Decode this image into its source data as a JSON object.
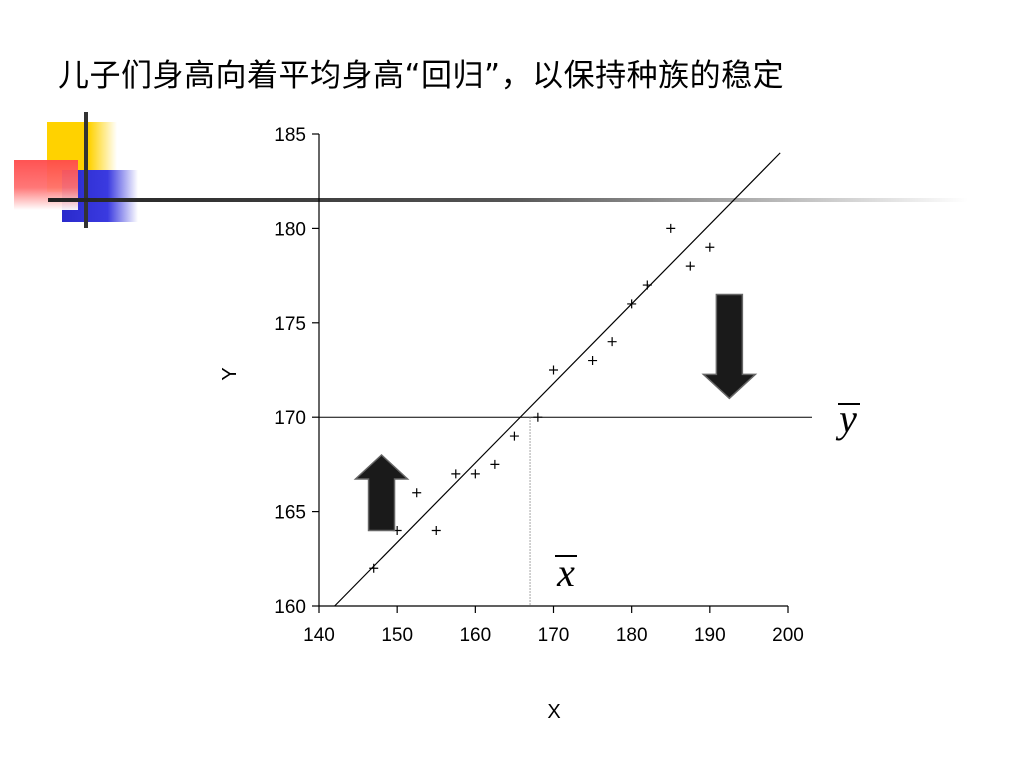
{
  "title": "儿子们身高向着平均身高“回归”，以保持种族的稳定",
  "chart_data": {
    "type": "scatter",
    "title": "儿子们身高向着平均身高“回归”，以保持种族的稳定",
    "xlabel": "X",
    "ylabel": "Y",
    "xlim": [
      140,
      200
    ],
    "ylim": [
      160,
      185
    ],
    "x_ticks": [
      "140",
      "150",
      "160",
      "170",
      "180",
      "190",
      "200"
    ],
    "y_ticks": [
      "160",
      "165",
      "170",
      "175",
      "180",
      "185"
    ],
    "x_tick_values": [
      140,
      150,
      160,
      170,
      180,
      190,
      200
    ],
    "y_tick_values": [
      160,
      165,
      170,
      175,
      180,
      185
    ],
    "points": [
      {
        "x": 147,
        "y": 162
      },
      {
        "x": 150,
        "y": 164
      },
      {
        "x": 152.5,
        "y": 166
      },
      {
        "x": 155,
        "y": 164
      },
      {
        "x": 157.5,
        "y": 167
      },
      {
        "x": 160,
        "y": 167
      },
      {
        "x": 162.5,
        "y": 167.5
      },
      {
        "x": 165,
        "y": 169
      },
      {
        "x": 168,
        "y": 170
      },
      {
        "x": 170,
        "y": 172.5
      },
      {
        "x": 175,
        "y": 173
      },
      {
        "x": 177.5,
        "y": 174
      },
      {
        "x": 180,
        "y": 176
      },
      {
        "x": 182,
        "y": 177
      },
      {
        "x": 185,
        "y": 180
      },
      {
        "x": 187.5,
        "y": 178
      },
      {
        "x": 190,
        "y": 179
      }
    ],
    "regression_line": {
      "x1": 142,
      "y1": 160,
      "x2": 199,
      "y2": 184
    },
    "mean_x": 167,
    "mean_y": 170,
    "mean_x_label": "x",
    "mean_y_label": "y",
    "arrows": [
      {
        "direction": "up",
        "x": 148,
        "y_from": 164,
        "y_to": 168
      },
      {
        "direction": "down",
        "x": 192.5,
        "y_from": 176.5,
        "y_to": 171
      }
    ],
    "grid": false,
    "colors": {
      "marks": "#000000",
      "arrow": "#1a1a1a",
      "mean_guide": "#888888"
    }
  }
}
